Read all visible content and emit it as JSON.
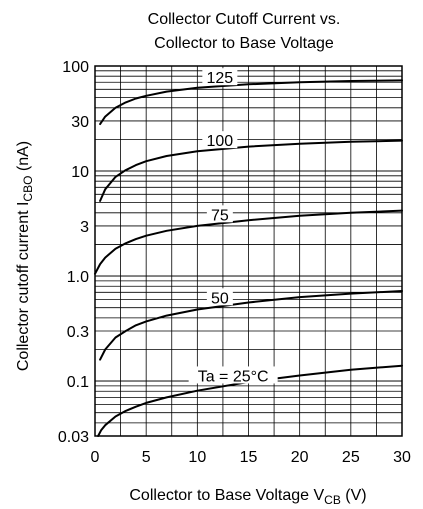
{
  "chart_data": {
    "type": "line",
    "title_line1": "Collector Cutoff Current vs.",
    "title_line2": "Collector to Base Voltage",
    "xlabel_main": "Collector to Base Voltage  V",
    "xlabel_sub": "CB",
    "xlabel_unit": "  (V)",
    "ylabel_main": "Collector cutoff current I",
    "ylabel_sub": "CBO",
    "ylabel_unit": "  (nA)",
    "x_scale": "linear",
    "y_scale": "log",
    "xlim": [
      0,
      30
    ],
    "ylim": [
      0.03,
      100
    ],
    "grid": true,
    "x_ticks": [
      "0",
      "5",
      "10",
      "15",
      "20",
      "25",
      "30"
    ],
    "y_ticks": [
      {
        "value": 100,
        "label": "100"
      },
      {
        "value": 30,
        "label": "30"
      },
      {
        "value": 10,
        "label": "10"
      },
      {
        "value": 3,
        "label": "3"
      },
      {
        "value": 1,
        "label": "1.0"
      },
      {
        "value": 0.3,
        "label": "0.3"
      },
      {
        "value": 0.1,
        "label": "0.1"
      },
      {
        "value": 0.03,
        "label": "0.03"
      }
    ],
    "series": [
      {
        "name": "125",
        "x": [
          0.5,
          1,
          2,
          3,
          4,
          5,
          7,
          10,
          15,
          20,
          25,
          30
        ],
        "y": [
          28,
          33,
          40,
          45,
          49,
          52,
          57,
          62,
          67,
          70,
          72,
          73
        ]
      },
      {
        "name": "100",
        "x": [
          0.5,
          1,
          2,
          3,
          4,
          5,
          7,
          10,
          15,
          20,
          25,
          30
        ],
        "y": [
          5.2,
          6.7,
          8.8,
          10.2,
          11.4,
          12.4,
          13.9,
          15.4,
          17.1,
          18.2,
          19.0,
          19.5
        ]
      },
      {
        "name": "75",
        "x": [
          0,
          0.5,
          1,
          2,
          3,
          4,
          5,
          7,
          10,
          15,
          20,
          25,
          30
        ],
        "y": [
          1.05,
          1.3,
          1.5,
          1.82,
          2.05,
          2.25,
          2.42,
          2.7,
          3.0,
          3.4,
          3.75,
          4.0,
          4.2
        ]
      },
      {
        "name": "50",
        "x": [
          0.5,
          1,
          2,
          3,
          4,
          5,
          7,
          10,
          15,
          20,
          25,
          30
        ],
        "y": [
          0.16,
          0.2,
          0.26,
          0.3,
          0.34,
          0.37,
          0.42,
          0.48,
          0.56,
          0.63,
          0.68,
          0.72
        ]
      },
      {
        "name": "Ta = 25°C",
        "x": [
          0.3,
          0.6,
          1,
          2,
          3,
          4,
          5,
          7,
          10,
          15,
          20,
          25,
          30
        ],
        "y": [
          0.03,
          0.034,
          0.038,
          0.046,
          0.052,
          0.057,
          0.062,
          0.07,
          0.081,
          0.098,
          0.113,
          0.128,
          0.14
        ]
      }
    ]
  }
}
